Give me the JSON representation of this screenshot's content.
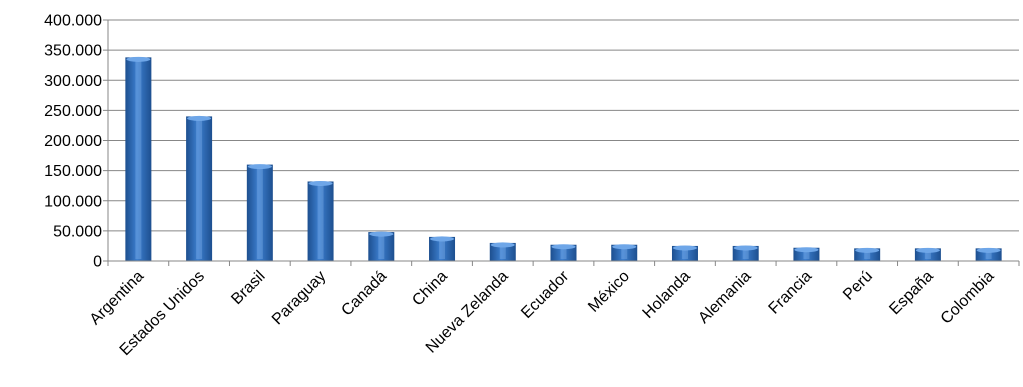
{
  "colors": {
    "bar_dark": "#1d4f8f",
    "bar_mid": "#3d7fcf",
    "bar_light": "#8ab8ee",
    "bar_top": "#6ea6e8",
    "grid": "#878787"
  },
  "chart_data": {
    "type": "bar",
    "title": "",
    "xlabel": "",
    "ylabel": "",
    "ylim": [
      0,
      400000
    ],
    "yticks": [
      0,
      50000,
      100000,
      150000,
      200000,
      250000,
      300000,
      350000,
      400000
    ],
    "ytick_labels": [
      "0",
      "50.000",
      "100.000",
      "150.000",
      "200.000",
      "250.000",
      "300.000",
      "350.000",
      "400.000"
    ],
    "grid": true,
    "legend": "none",
    "categories": [
      "Argentina",
      "Estados Unidos",
      "Brasil",
      "Paraguay",
      "Canadá",
      "China",
      "Nueva Zelanda",
      "Ecuador",
      "México",
      "Holanda",
      "Alemania",
      "Francia",
      "Perú",
      "España",
      "Colombia"
    ],
    "values": [
      338000,
      240000,
      160000,
      132000,
      48000,
      40000,
      30000,
      27000,
      27000,
      25000,
      25000,
      22000,
      21000,
      21000,
      21000
    ]
  }
}
